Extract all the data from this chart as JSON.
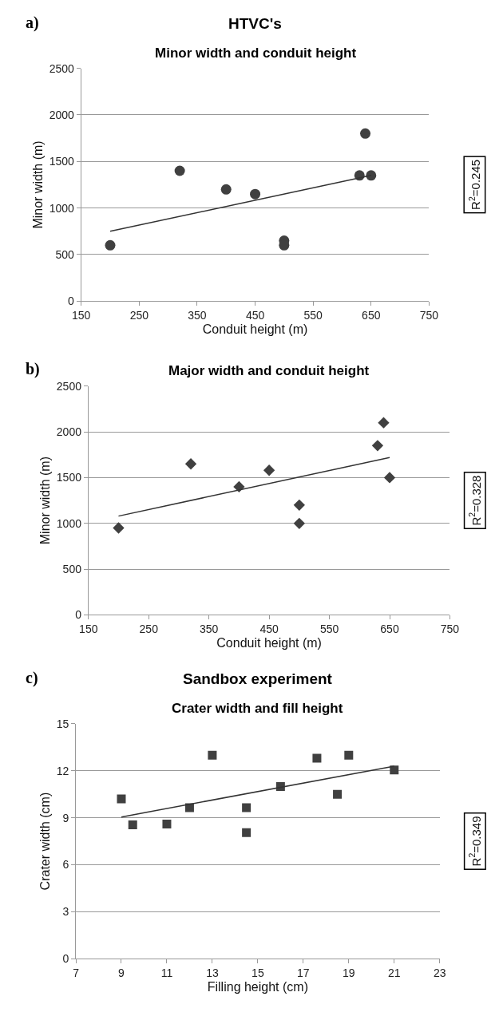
{
  "chart_data": [
    {
      "type": "scatter",
      "title": "HTVC's",
      "subtitle": "Minor width and conduit height",
      "xlabel": "Conduit height (m)",
      "ylabel": "Minor width (m)",
      "xlim": [
        150,
        750
      ],
      "xticks": [
        150,
        250,
        350,
        450,
        550,
        650,
        750
      ],
      "ylim": [
        0,
        2500
      ],
      "yticks": [
        0,
        500,
        1000,
        1500,
        2000,
        2500
      ],
      "grid": "y",
      "marker": "circle",
      "annotations": [
        "a)",
        "R$^{2}$=0.245"
      ],
      "series": [
        {
          "color": "#404040",
          "x": [
            200,
            320,
            400,
            450,
            500,
            500,
            630,
            640,
            650
          ],
          "values": [
            600,
            1400,
            1200,
            1150,
            650,
            600,
            1350,
            1800,
            1350
          ]
        },
        {
          "type": "line",
          "marker": "none",
          "color": "#333333",
          "x": [
            200,
            650
          ],
          "values": [
            750,
            1350
          ]
        }
      ]
    },
    {
      "type": "scatter",
      "title": "Major width and conduit height",
      "xlabel": "Conduit height (m)",
      "ylabel": "Minor width (m)",
      "xlim": [
        150,
        750
      ],
      "xticks": [
        150,
        250,
        350,
        450,
        550,
        650,
        750
      ],
      "ylim": [
        0,
        2500
      ],
      "yticks": [
        0,
        500,
        1000,
        1500,
        2000,
        2500
      ],
      "grid": "y",
      "marker": "diamond",
      "annotations": [
        "b)",
        "R$^{2}$=0.328"
      ],
      "series": [
        {
          "color": "#404040",
          "x": [
            200,
            320,
            400,
            450,
            500,
            500,
            630,
            640,
            650
          ],
          "values": [
            950,
            1650,
            1400,
            1580,
            1200,
            1000,
            1850,
            2100,
            1500
          ]
        },
        {
          "type": "line",
          "marker": "none",
          "color": "#333333",
          "x": [
            200,
            650
          ],
          "values": [
            1080,
            1720
          ]
        }
      ]
    },
    {
      "type": "scatter",
      "title": "Sandbox experiment",
      "subtitle": "Crater width and fill height",
      "xlabel": "Filling height (cm)",
      "ylabel": "Crater width (cm)",
      "xlim": [
        7,
        23
      ],
      "xticks": [
        7,
        9,
        11,
        13,
        15,
        17,
        19,
        21,
        23
      ],
      "ylim": [
        0,
        15
      ],
      "yticks": [
        0,
        3,
        6,
        9,
        12,
        15
      ],
      "grid": "y",
      "marker": "square",
      "annotations": [
        "c)",
        "R$^{2}$=0.349"
      ],
      "series": [
        {
          "color": "#404040",
          "x": [
            9,
            9.5,
            11,
            12,
            13,
            14.5,
            14.5,
            16,
            17.6,
            18.5,
            19,
            21
          ],
          "values": [
            10.2,
            8.55,
            8.6,
            9.65,
            13,
            9.65,
            8.05,
            11,
            12.8,
            10.5,
            13,
            12.05
          ]
        },
        {
          "type": "line",
          "marker": "none",
          "color": "#333333",
          "x": [
            9,
            21
          ],
          "values": [
            9.05,
            12.3
          ]
        }
      ]
    }
  ]
}
